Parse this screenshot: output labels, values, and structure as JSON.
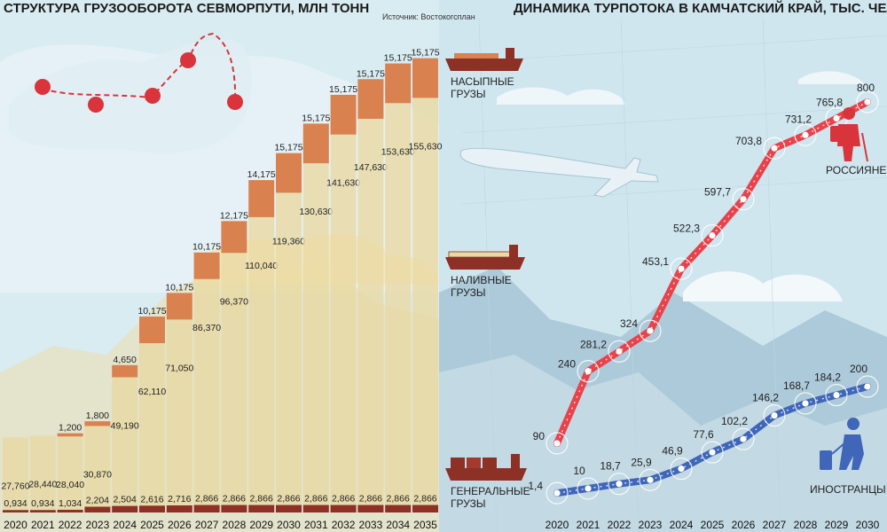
{
  "colors": {
    "bulk": "#d9824f",
    "liquid": "#e9d9a4",
    "general": "#8d3025",
    "russians": "#e8424a",
    "foreigners": "#3f66b8",
    "sky": "#cfe6ef"
  },
  "icons": {
    "bulk_ship": "bulk-carrier-icon",
    "tanker": "tanker-icon",
    "container_ship": "container-ship-icon",
    "airplane": "airplane-icon",
    "hiker": "hiker-icon",
    "traveler": "traveler-icon",
    "route_map": "russia-route-map-icon"
  },
  "chart_data": [
    {
      "type": "bar",
      "stacked": true,
      "title": "СТРУКТУРА ГРУЗООБОРОТА СЕВМОРПУТИ, МЛН ТОНН",
      "source": "Источник: Востокогсплан",
      "categories": [
        "2020",
        "2021",
        "2022",
        "2023",
        "2024",
        "2025",
        "2026",
        "2027",
        "2028",
        "2029",
        "2030",
        "2031",
        "2032",
        "2033",
        "2034",
        "2035"
      ],
      "series": [
        {
          "name": "ГЕНЕРАЛЬНЫЕ ГРУЗЫ",
          "labels": [
            "0,934",
            "0,934",
            "1,034",
            "2,204",
            "2,504",
            "2,616",
            "2,716",
            "2,866",
            "2,866",
            "2,866",
            "2,866",
            "2,866",
            "2,866",
            "2,866",
            "2,866",
            "2,866"
          ],
          "values": [
            0.934,
            0.934,
            1.034,
            2.204,
            2.504,
            2.616,
            2.716,
            2.866,
            2.866,
            2.866,
            2.866,
            2.866,
            2.866,
            2.866,
            2.866,
            2.866
          ]
        },
        {
          "name": "НАЛИВНЫЕ ГРУЗЫ",
          "labels": [
            "27,760",
            "28,440",
            "28,040",
            "30,870",
            "49,190",
            "62,110",
            "71,050",
            "86,370",
            "96,370",
            "110,040",
            "119,360",
            "130,630",
            "141,630",
            "147,630",
            "153,630",
            "155,630"
          ],
          "values": [
            27.76,
            28.44,
            28.04,
            30.87,
            49.19,
            62.11,
            71.05,
            86.37,
            96.37,
            110.04,
            119.36,
            130.63,
            141.63,
            147.63,
            153.63,
            155.63
          ]
        },
        {
          "name": "НАСЫПНЫЕ ГРУЗЫ",
          "labels": [
            "",
            "",
            "1,200",
            "1,800",
            "4,650",
            "10,175",
            "10,175",
            "10,175",
            "12,175",
            "14,175",
            "15,175",
            "15,175",
            "15,175",
            "15,175",
            "15,175",
            "15,175"
          ],
          "values": [
            0,
            0,
            1.2,
            1.8,
            4.65,
            10.175,
            10.175,
            10.175,
            12.175,
            14.175,
            15.175,
            15.175,
            15.175,
            15.175,
            15.175,
            15.175
          ]
        }
      ],
      "legend": [
        {
          "label": "НАСЫПНЫЕ",
          "label2": "ГРУЗЫ"
        },
        {
          "label": "НАЛИВНЫЕ",
          "label2": "ГРУЗЫ"
        },
        {
          "label": "ГЕНЕРАЛЬНЫЕ",
          "label2": "ГРУЗЫ"
        }
      ]
    },
    {
      "type": "line",
      "title": "ДИНАМИКА ТУРПОТОКА В КАМЧАТСКИЙ КРАЙ, ТЫС. ЧЕЛ.",
      "x": [
        "2020",
        "2021",
        "2022",
        "2023",
        "2024",
        "2025",
        "2026",
        "2027",
        "2028",
        "2029",
        "2030"
      ],
      "series": [
        {
          "name": "РОССИЯНЕ",
          "labels": [
            "90",
            "240",
            "281,2",
            "324",
            "453,1",
            "522,3",
            "597,7",
            "703,8",
            "731,2",
            "765,8",
            "800"
          ],
          "values": [
            90,
            240,
            281.2,
            324,
            453.1,
            522.3,
            597.7,
            703.8,
            731.2,
            765.8,
            800
          ]
        },
        {
          "name": "ИНОСТРАНЦЫ",
          "labels": [
            "1,4",
            "10",
            "18,7",
            "25,9",
            "46,9",
            "77,6",
            "102,2",
            "146,2",
            "168,7",
            "184,2",
            "200"
          ],
          "values": [
            1.4,
            10,
            18.7,
            25.9,
            46.9,
            77.6,
            102.2,
            146.2,
            168.7,
            184.2,
            200
          ]
        }
      ]
    }
  ]
}
